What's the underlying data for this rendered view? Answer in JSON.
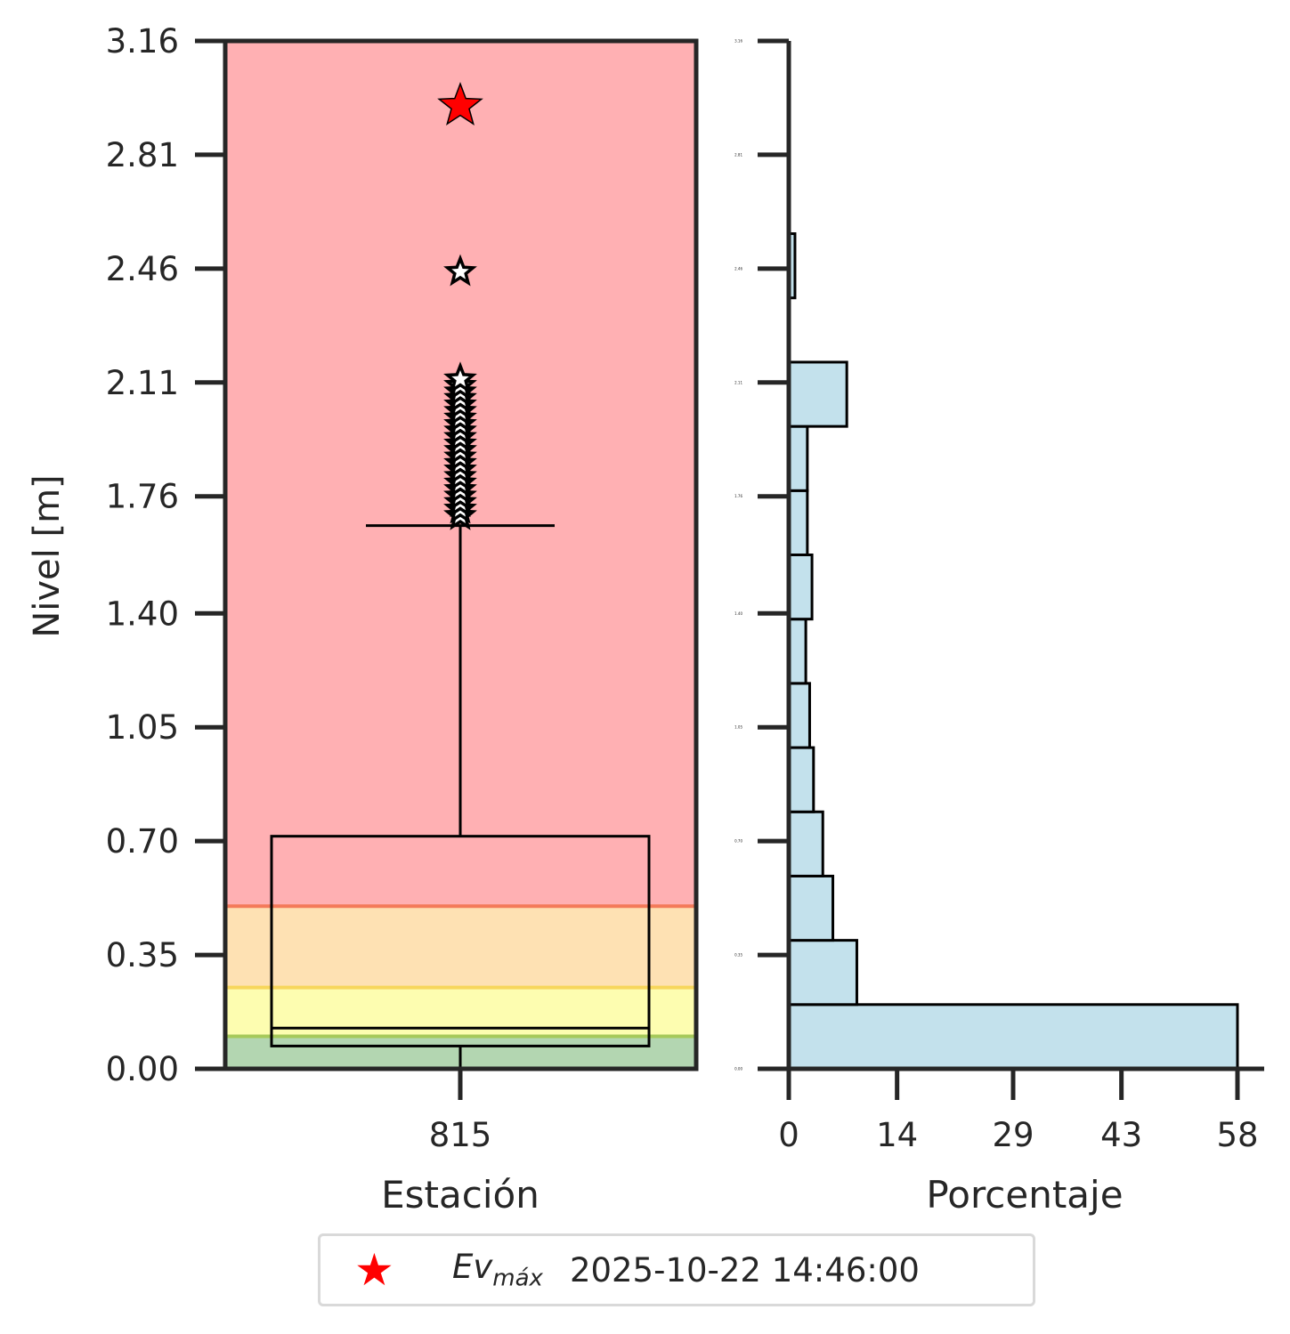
{
  "chart_data": [
    {
      "type": "box",
      "xlabel": "Estación",
      "ylabel": "Nivel [m]",
      "categories": [
        "815"
      ],
      "ylim": [
        0.0,
        3.16
      ],
      "yticks": [
        "0.00",
        "0.35",
        "0.70",
        "1.05",
        "1.40",
        "1.76",
        "2.11",
        "2.46",
        "2.81",
        "3.16"
      ],
      "threshold_bands": [
        {
          "from": 0.0,
          "to": 0.1,
          "color": "#b3d6b1",
          "line_color": "#a6c95a"
        },
        {
          "from": 0.1,
          "to": 0.25,
          "color": "#fdfdb0",
          "line_color": "#f7d65c"
        },
        {
          "from": 0.25,
          "to": 0.5,
          "color": "#fee1b3",
          "line_color": "#f47a5a"
        },
        {
          "from": 0.5,
          "to": 3.16,
          "color": "#ffb0b3",
          "line_color": null
        }
      ],
      "box": {
        "whisker_low": 0.0,
        "q1": 0.07,
        "median": 0.125,
        "q3": 0.715,
        "whisker_high": 1.67
      },
      "outliers": [
        1.7,
        1.72,
        1.74,
        1.76,
        1.78,
        1.8,
        1.82,
        1.84,
        1.86,
        1.88,
        1.9,
        1.92,
        1.94,
        1.96,
        1.98,
        2.0,
        2.02,
        2.04,
        2.06,
        2.08,
        2.1,
        2.12,
        2.45
      ],
      "max_event": {
        "value": 2.96,
        "color": "#ff0000"
      }
    },
    {
      "type": "bar",
      "orientation": "horizontal",
      "xlabel": "Porcentaje",
      "xlim": [
        0,
        58
      ],
      "xticks": [
        "0",
        "14",
        "29",
        "43",
        "58"
      ],
      "ylim": [
        0.0,
        3.16
      ],
      "yticks": [
        "0.00",
        "0.35",
        "0.70",
        "1.05",
        "1.40",
        "1.76",
        "2.11",
        "2.46",
        "2.81",
        "3.16"
      ],
      "bar_color": "#c3e1ec",
      "bins": [
        {
          "from": 0.0,
          "to": 0.1975,
          "value": 58.0
        },
        {
          "from": 0.1975,
          "to": 0.395,
          "value": 8.8
        },
        {
          "from": 0.395,
          "to": 0.5925,
          "value": 5.7
        },
        {
          "from": 0.5925,
          "to": 0.79,
          "value": 4.4
        },
        {
          "from": 0.79,
          "to": 0.9875,
          "value": 3.2
        },
        {
          "from": 0.9875,
          "to": 1.185,
          "value": 2.7
        },
        {
          "from": 1.185,
          "to": 1.3825,
          "value": 2.2
        },
        {
          "from": 1.3825,
          "to": 1.58,
          "value": 3.0
        },
        {
          "from": 1.58,
          "to": 1.7775,
          "value": 2.4
        },
        {
          "from": 1.7775,
          "to": 1.975,
          "value": 2.4
        },
        {
          "from": 1.975,
          "to": 2.1725,
          "value": 7.5
        },
        {
          "from": 2.1725,
          "to": 2.37,
          "value": 0.0
        },
        {
          "from": 2.37,
          "to": 2.5675,
          "value": 0.8
        }
      ]
    }
  ],
  "legend": {
    "marker_color": "#ff0000",
    "label_main": "Ev",
    "label_sub": "máx",
    "date": "2025-10-22 14:46:00"
  }
}
